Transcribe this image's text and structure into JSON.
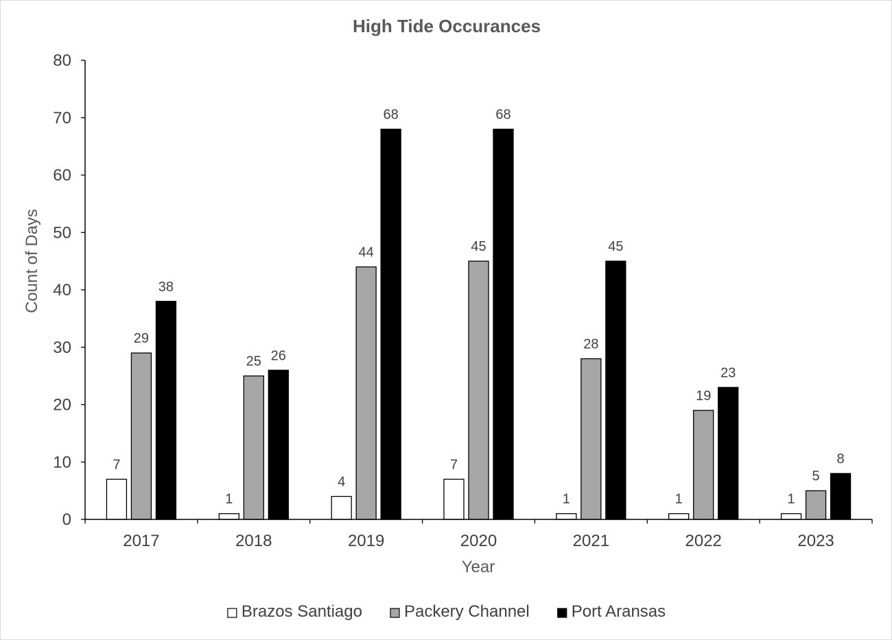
{
  "chart_data": {
    "type": "bar",
    "title": "High Tide Occurances",
    "xlabel": "Year",
    "ylabel": "Count of Days",
    "categories": [
      "2017",
      "2018",
      "2019",
      "2020",
      "2021",
      "2022",
      "2023"
    ],
    "series": [
      {
        "name": "Brazos Santiago",
        "color": "#ffffff",
        "values": [
          7,
          1,
          4,
          7,
          1,
          1,
          1
        ]
      },
      {
        "name": "Packery Channel",
        "color": "#a6a6a6",
        "values": [
          29,
          25,
          44,
          45,
          28,
          19,
          5
        ]
      },
      {
        "name": "Port Aransas",
        "color": "#000000",
        "values": [
          38,
          26,
          68,
          68,
          45,
          23,
          8
        ]
      }
    ],
    "ylim": [
      0,
      80
    ],
    "yticks": [
      0,
      10,
      20,
      30,
      40,
      50,
      60,
      70,
      80
    ],
    "grid": false,
    "legend_position": "bottom",
    "data_labels": true
  }
}
